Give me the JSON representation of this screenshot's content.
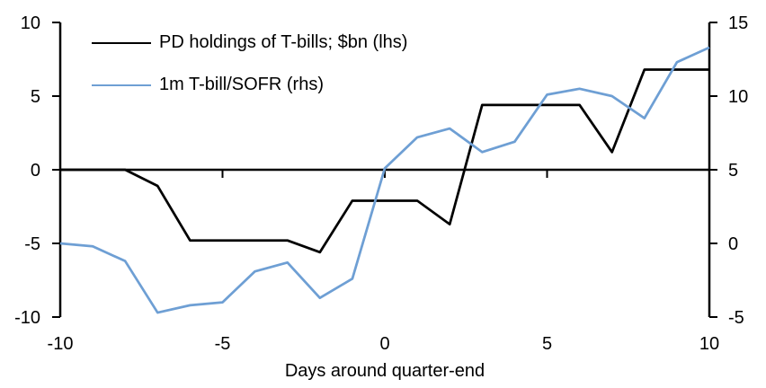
{
  "chart_data": {
    "type": "line",
    "title": "",
    "xlabel": "Days around quarter-end",
    "grid": false,
    "legend_position": "top-left",
    "x": [
      -10,
      -9,
      -8,
      -7,
      -6,
      -5,
      -4,
      -3,
      -2,
      -1,
      0,
      1,
      2,
      3,
      4,
      5,
      6,
      7,
      8,
      9,
      10
    ],
    "series": [
      {
        "name": "PD holdings of T-bills; $bn (lhs)",
        "axis": "left",
        "color": "#000000",
        "values": [
          0,
          0,
          0,
          -1.1,
          -4.8,
          -4.8,
          -4.8,
          -4.8,
          -5.6,
          -2.1,
          -2.1,
          -2.1,
          -3.7,
          4.4,
          4.4,
          4.4,
          4.4,
          1.2,
          6.8,
          6.8,
          6.8
        ]
      },
      {
        "name": "1m T-bill/SOFR (rhs)",
        "axis": "right",
        "color": "#6E9FD4",
        "values": [
          0.0,
          -0.2,
          -1.2,
          -4.7,
          -4.2,
          -4.0,
          -1.9,
          -1.3,
          -3.7,
          -2.4,
          5.1,
          7.2,
          7.8,
          6.2,
          6.9,
          10.1,
          10.5,
          10.0,
          8.5,
          12.3,
          13.3
        ]
      }
    ],
    "left_axis": {
      "range": [
        -10,
        10
      ],
      "tick_values": [
        10,
        5,
        0,
        -5,
        -10
      ],
      "ticks": [
        "10",
        "5",
        "0",
        "-5",
        "-10"
      ]
    },
    "right_axis": {
      "range": [
        -5,
        15
      ],
      "tick_values": [
        15,
        10,
        5,
        0,
        -5
      ],
      "ticks": [
        "15",
        "10",
        "5",
        "0",
        "-5"
      ]
    },
    "x_axis": {
      "range": [
        -10,
        10
      ],
      "tick_values": [
        -10,
        -5,
        0,
        5,
        10
      ],
      "ticks": [
        "-10",
        "-5",
        "0",
        "5",
        "10"
      ]
    }
  }
}
